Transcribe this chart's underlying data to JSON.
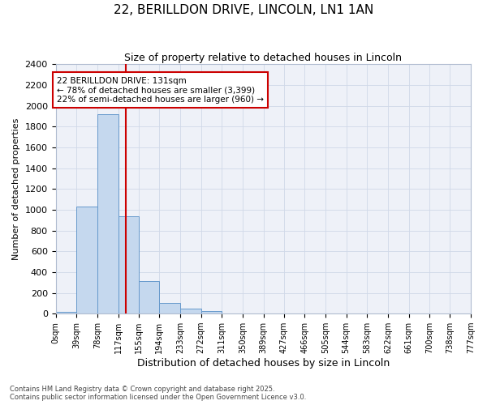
{
  "title1": "22, BERILLDON DRIVE, LINCOLN, LN1 1AN",
  "title2": "Size of property relative to detached houses in Lincoln",
  "xlabel": "Distribution of detached houses by size in Lincoln",
  "ylabel": "Number of detached properties",
  "background_color": "#eef1f8",
  "bar_color": "#c5d8ee",
  "bar_edge_color": "#6699cc",
  "bin_edges": [
    0,
    39,
    78,
    117,
    155,
    194,
    233,
    272,
    311,
    350,
    389,
    427,
    466,
    505,
    544,
    583,
    622,
    661,
    700,
    738,
    777
  ],
  "bin_labels": [
    "0sqm",
    "39sqm",
    "78sqm",
    "117sqm",
    "155sqm",
    "194sqm",
    "233sqm",
    "272sqm",
    "311sqm",
    "350sqm",
    "389sqm",
    "427sqm",
    "466sqm",
    "505sqm",
    "544sqm",
    "583sqm",
    "622sqm",
    "661sqm",
    "700sqm",
    "738sqm",
    "777sqm"
  ],
  "bar_heights": [
    20,
    1030,
    1920,
    935,
    315,
    105,
    50,
    25,
    0,
    0,
    0,
    0,
    0,
    0,
    0,
    0,
    0,
    0,
    0,
    0
  ],
  "property_size": 131,
  "red_line_color": "#cc0000",
  "annotation_line1": "22 BERILLDON DRIVE: 131sqm",
  "annotation_line2": "← 78% of detached houses are smaller (3,399)",
  "annotation_line3": "22% of semi-detached houses are larger (960) →",
  "annotation_box_color": "#ffffff",
  "annotation_border_color": "#cc0000",
  "ylim": [
    0,
    2400
  ],
  "yticks": [
    0,
    200,
    400,
    600,
    800,
    1000,
    1200,
    1400,
    1600,
    1800,
    2000,
    2200,
    2400
  ],
  "footer1": "Contains HM Land Registry data © Crown copyright and database right 2025.",
  "footer2": "Contains public sector information licensed under the Open Government Licence v3.0.",
  "grid_color": "#d0d8e8",
  "figsize": [
    6.0,
    5.0
  ],
  "dpi": 100
}
